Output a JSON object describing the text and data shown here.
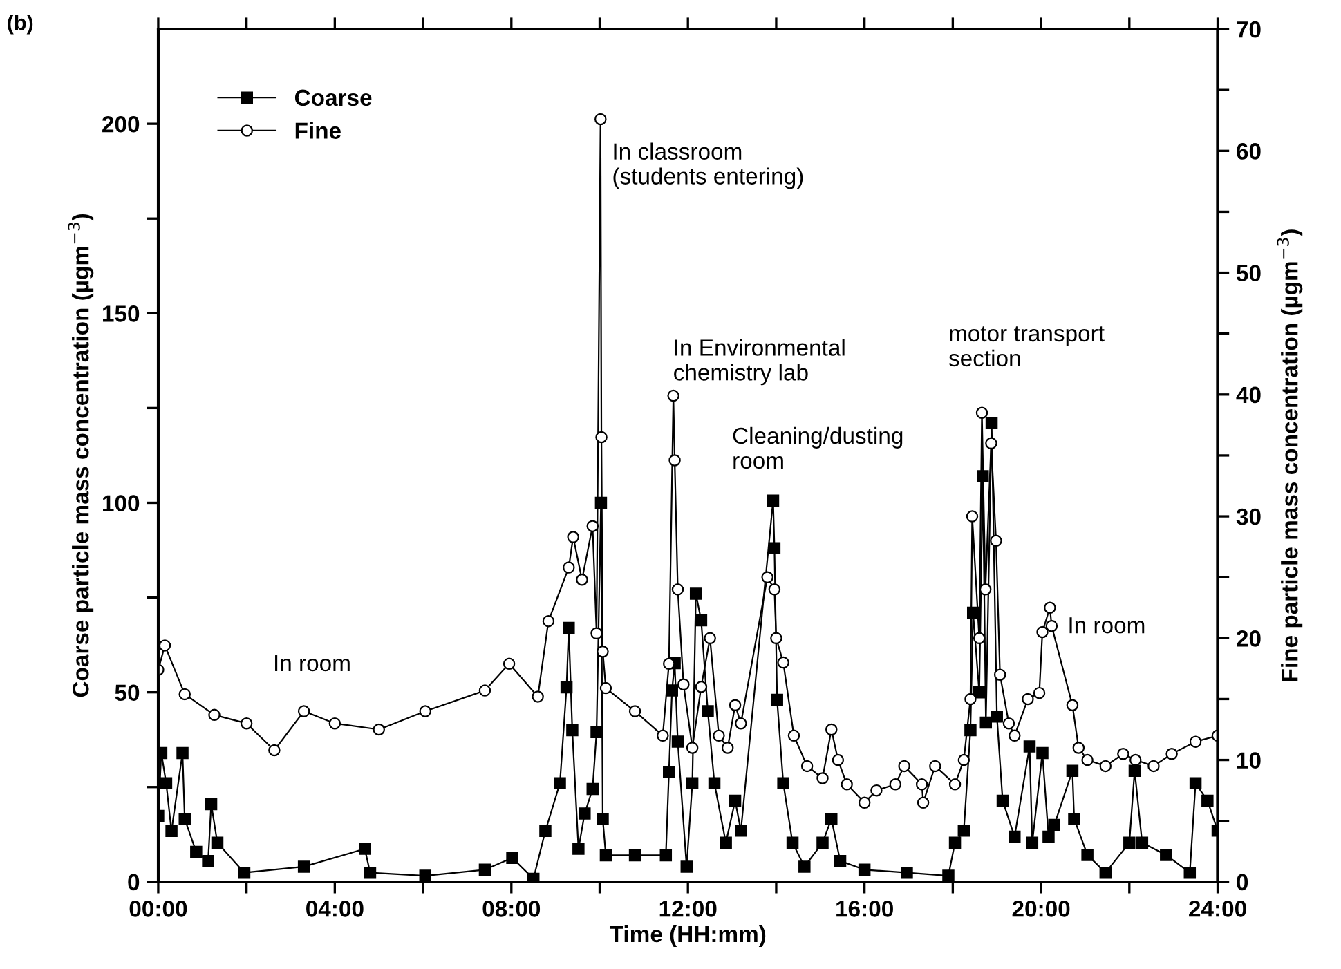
{
  "chart_data": {
    "type": "line",
    "xlabel": "Time (HH:mm)",
    "ylabel": "Coarse particle mass concentration (µgm$^{−3}$)",
    "y2label": "Fine particle mass concentration (µgm$^{−3}$)",
    "xlim": [
      0,
      24
    ],
    "ylim": [
      0,
      225
    ],
    "y2lim": [
      0,
      70
    ],
    "xticks": [
      {
        "value": 0,
        "label": "00:00"
      },
      {
        "value": 2,
        "label": null
      },
      {
        "value": 4,
        "label": "04:00"
      },
      {
        "value": 6,
        "label": null
      },
      {
        "value": 8,
        "label": "08:00"
      },
      {
        "value": 10,
        "label": null
      },
      {
        "value": 12,
        "label": "12:00"
      },
      {
        "value": 14,
        "label": null
      },
      {
        "value": 16,
        "label": "16:00"
      },
      {
        "value": 18,
        "label": null
      },
      {
        "value": 20,
        "label": "20:00"
      },
      {
        "value": 22,
        "label": null
      },
      {
        "value": 24,
        "label": "24:00"
      }
    ],
    "yticks": [
      0,
      {
        "value": 25,
        "label": null
      },
      50,
      {
        "value": 75,
        "label": null
      },
      100,
      {
        "value": 125,
        "label": null
      },
      150,
      {
        "value": 175,
        "label": null
      },
      200
    ],
    "y2ticks": [
      0,
      {
        "value": 5,
        "label": null
      },
      10,
      {
        "value": 15,
        "label": null
      },
      20,
      {
        "value": 25,
        "label": null
      },
      30,
      {
        "value": 35,
        "label": null
      },
      40,
      {
        "value": 45,
        "label": null
      },
      50,
      {
        "value": 55,
        "label": null
      },
      60,
      {
        "value": 65,
        "label": null
      },
      70
    ],
    "grid": false,
    "legend": "top left",
    "line_style": "solid",
    "series": [
      {
        "name": "Coarse",
        "color": "#000000",
        "marker": "square",
        "x": [
          0.0,
          0.07,
          0.18,
          0.3,
          0.55,
          0.6,
          0.86,
          1.13,
          1.2,
          1.34,
          1.95,
          3.3,
          4.68,
          4.8,
          6.05,
          7.4,
          8.02,
          8.5,
          8.77,
          9.1,
          9.25,
          9.3,
          9.38,
          9.52,
          9.66,
          9.84,
          9.93,
          10.03,
          10.07,
          10.14,
          10.8,
          11.5,
          11.57,
          11.64,
          11.7,
          11.77,
          11.97,
          12.1,
          12.18,
          12.3,
          12.45,
          12.6,
          12.86,
          13.07,
          13.2,
          13.93,
          13.96,
          14.02,
          14.16,
          14.37,
          14.64,
          15.05,
          15.25,
          15.45,
          16.0,
          16.96,
          17.9,
          18.05,
          18.25,
          18.4,
          18.46,
          18.6,
          18.68,
          18.75,
          18.88,
          19.0,
          19.13,
          19.4,
          19.74,
          19.8,
          20.03,
          20.17,
          20.3,
          20.71,
          20.75,
          21.05,
          21.46,
          22.0,
          22.12,
          22.29,
          22.83,
          23.37,
          23.5,
          23.77,
          24.0
        ],
        "values": [
          17.4,
          34,
          26,
          13.4,
          34,
          16.6,
          7.9,
          5.5,
          20.5,
          10.3,
          2.4,
          4,
          8.7,
          2.4,
          1.6,
          3.2,
          6.3,
          0.8,
          13.4,
          26,
          51.3,
          67,
          40,
          8.7,
          18,
          24.5,
          39.5,
          100,
          16.6,
          7,
          7,
          7,
          29,
          50.5,
          57.7,
          37,
          4,
          26,
          76,
          69,
          45,
          26,
          10.3,
          21.4,
          13.5,
          100.6,
          88,
          48,
          26,
          10.3,
          4,
          10.3,
          16.6,
          5.5,
          3.2,
          2.4,
          1.6,
          10.3,
          13.5,
          40,
          71,
          50,
          107,
          42,
          121,
          43.6,
          21.4,
          11.9,
          35.7,
          10.3,
          34,
          11.9,
          15,
          29.3,
          16.6,
          7.1,
          2.4,
          10.3,
          29.3,
          10.3,
          7.1,
          2.4,
          26,
          21.4,
          13.5
        ]
      },
      {
        "name": "Fine",
        "color": "#000000",
        "marker": "circle",
        "axis": "y2",
        "x": [
          0.0,
          0.15,
          0.6,
          1.27,
          2.0,
          2.63,
          3.3,
          4.0,
          5.0,
          6.05,
          7.4,
          7.95,
          8.6,
          8.84,
          9.3,
          9.4,
          9.6,
          9.84,
          9.93,
          10.02,
          10.04,
          10.07,
          10.14,
          10.8,
          11.43,
          11.57,
          11.67,
          11.7,
          11.77,
          11.9,
          12.1,
          12.3,
          12.5,
          12.7,
          12.9,
          13.07,
          13.2,
          13.8,
          13.96,
          14.0,
          14.16,
          14.4,
          14.7,
          15.05,
          15.25,
          15.4,
          15.6,
          16.0,
          16.27,
          16.7,
          16.9,
          17.3,
          17.33,
          17.6,
          18.05,
          18.25,
          18.4,
          18.44,
          18.6,
          18.66,
          18.74,
          18.87,
          18.98,
          19.07,
          19.27,
          19.4,
          19.7,
          19.96,
          20.03,
          20.2,
          20.24,
          20.71,
          20.85,
          21.05,
          21.46,
          21.86,
          22.14,
          22.55,
          22.96,
          23.5,
          24.0
        ],
        "values": [
          17.4,
          19.4,
          15.4,
          13.7,
          13,
          10.8,
          14,
          13,
          12.5,
          14,
          15.7,
          17.9,
          15.2,
          21.4,
          25.8,
          28.3,
          24.8,
          29.2,
          20.4,
          62.6,
          36.5,
          18.9,
          15.9,
          14,
          12,
          17.9,
          39.9,
          34.6,
          24,
          16.2,
          11,
          16,
          20,
          12,
          11,
          14.5,
          13,
          25,
          24,
          20,
          18,
          12,
          9.5,
          8.5,
          12.5,
          10,
          8,
          6.5,
          7.5,
          8,
          9.5,
          8,
          6.5,
          9.5,
          8,
          10,
          15,
          30,
          20,
          38.5,
          24,
          36,
          28,
          17,
          13,
          12,
          15,
          15.5,
          20.5,
          22.5,
          21,
          14.5,
          11,
          10,
          9.5,
          10.5,
          10,
          9.5,
          10.5,
          11.5,
          12
        ]
      }
    ],
    "annotations": [
      "(b)",
      "In room",
      {
        "text": "In classroom\n(students entering)",
        "x": 10.15,
        "y": 194
      },
      {
        "text": "In Environmental\nchemistry lab",
        "x": 11.75,
        "y": 128
      },
      "Cleaning/dusting\nroom",
      "motor transport\nsection",
      "In room"
    ]
  }
}
